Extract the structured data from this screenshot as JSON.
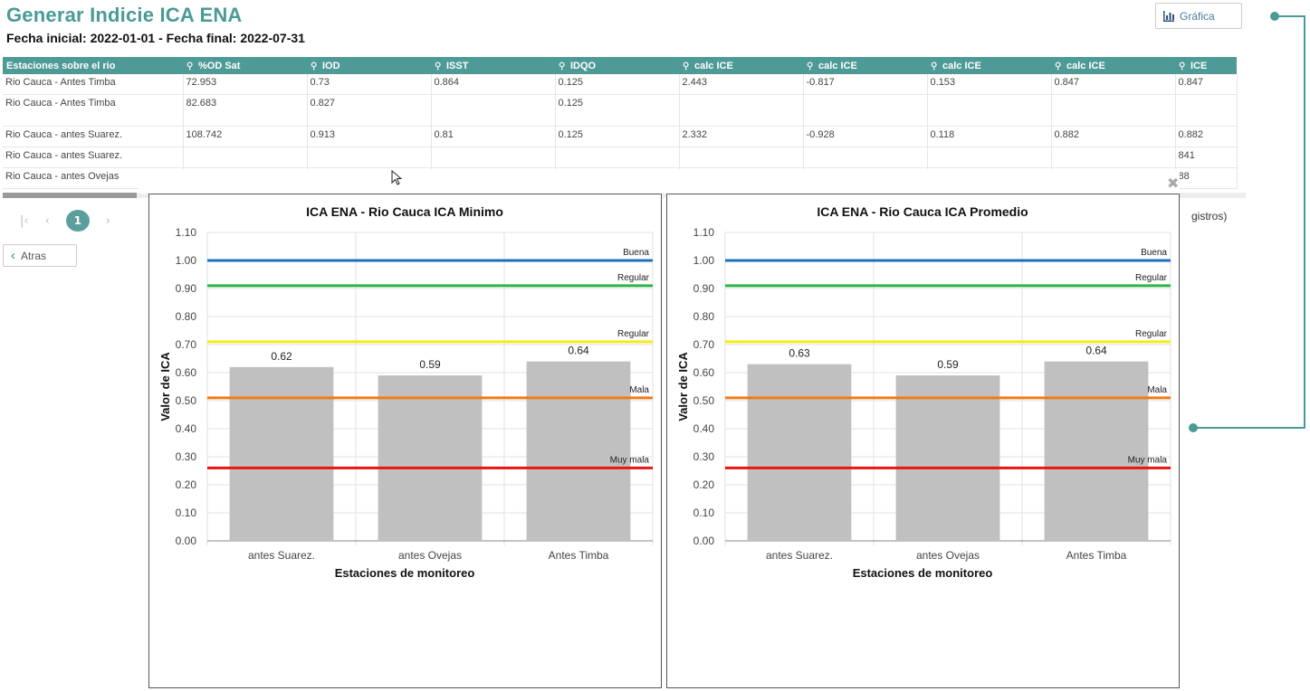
{
  "header": {
    "title": "Generar Indicie ICA ENA",
    "subtitle": "Fecha inicial: 2022-01-01 - Fecha final: 2022-07-31",
    "grafica_label": "Gráfica"
  },
  "table": {
    "columns": [
      "Estaciones sobre el rio",
      "%OD Sat",
      "IOD",
      "ISST",
      "IDQO",
      "calc ICE",
      "calc ICE",
      "calc ICE",
      "calc ICE",
      "ICE"
    ],
    "rows": [
      [
        "Rio Cauca - Antes Timba",
        "72.953",
        "0.73",
        "0.864",
        "0.125",
        "2.443",
        "-0.817",
        "0.153",
        "0.847",
        "0.847"
      ],
      [
        "Rio Cauca - Antes Timba",
        "82.683",
        "0.827",
        "",
        "0.125",
        "",
        "",
        "",
        "",
        ""
      ],
      [
        "Rio Cauca - antes Suarez.",
        "108.742",
        "0.913",
        "0.81",
        "0.125",
        "2.332",
        "-0.928",
        "0.118",
        "0.882",
        "0.882"
      ],
      [
        "Rio Cauca - antes Suarez.",
        "",
        "",
        "",
        "",
        "",
        "",
        "",
        "",
        "841"
      ],
      [
        "Rio Cauca - antes Ovejas",
        "",
        "",
        "",
        "",
        "",
        "",
        "",
        "",
        "88"
      ]
    ]
  },
  "pager": {
    "current_page": "1",
    "registros_text": "gistros)"
  },
  "atras_label": "Atras",
  "chart_data": [
    {
      "type": "bar",
      "title": "ICA ENA - Rio Cauca ICA Minimo",
      "xlabel": "Estaciones de monitoreo",
      "ylabel": "Valor de ICA",
      "categories": [
        "antes Suarez.",
        "antes Ovejas",
        "Antes Timba"
      ],
      "values": [
        0.62,
        0.59,
        0.64
      ],
      "data_labels": [
        "0.62",
        "0.59",
        "0.64"
      ],
      "ylim": [
        0,
        1.1
      ],
      "yticks": [
        "0.00",
        "0.10",
        "0.20",
        "0.30",
        "0.40",
        "0.50",
        "0.60",
        "0.70",
        "0.80",
        "0.90",
        "1.00",
        "1.10"
      ],
      "grid": true,
      "bar_color": "#c0c0c0",
      "reference_lines": [
        {
          "label": "Buena",
          "value": 1.0,
          "color": "#1f6fbf"
        },
        {
          "label": "Regular",
          "value": 0.91,
          "color": "#2db34a"
        },
        {
          "label": "Regular",
          "value": 0.71,
          "color": "#f5ea1a"
        },
        {
          "label": "Mala",
          "value": 0.51,
          "color": "#f07b1a"
        },
        {
          "label": "Muy mala",
          "value": 0.26,
          "color": "#e81414"
        }
      ]
    },
    {
      "type": "bar",
      "title": "ICA ENA - Rio Cauca ICA Promedio",
      "xlabel": "Estaciones de monitoreo",
      "ylabel": "Valor de ICA",
      "categories": [
        "antes Suarez.",
        "antes Ovejas",
        "Antes Timba"
      ],
      "values": [
        0.63,
        0.59,
        0.64
      ],
      "data_labels": [
        "0.63",
        "0.59",
        "0.64"
      ],
      "ylim": [
        0,
        1.1
      ],
      "yticks": [
        "0.00",
        "0.10",
        "0.20",
        "0.30",
        "0.40",
        "0.50",
        "0.60",
        "0.70",
        "0.80",
        "0.90",
        "1.00",
        "1.10"
      ],
      "grid": true,
      "bar_color": "#c0c0c0",
      "reference_lines": [
        {
          "label": "Buena",
          "value": 1.0,
          "color": "#1f6fbf"
        },
        {
          "label": "Regular",
          "value": 0.91,
          "color": "#2db34a"
        },
        {
          "label": "Regular",
          "value": 0.71,
          "color": "#f5ea1a"
        },
        {
          "label": "Mala",
          "value": 0.51,
          "color": "#f07b1a"
        },
        {
          "label": "Muy mala",
          "value": 0.26,
          "color": "#e81414"
        }
      ]
    }
  ]
}
